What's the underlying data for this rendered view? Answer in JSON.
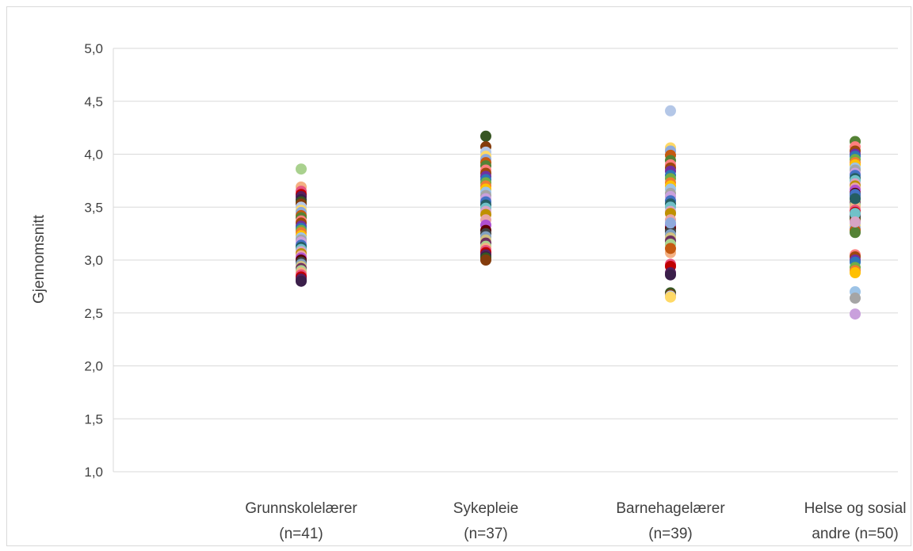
{
  "chart_data": {
    "type": "scatter",
    "title": "",
    "xlabel": "",
    "ylabel": "Gjennomsnitt",
    "ylim": [
      1.0,
      5.0
    ],
    "ytick_labels": [
      "1,0",
      "1,5",
      "2,0",
      "2,5",
      "3,0",
      "3,5",
      "4,0",
      "4,5",
      "5,0"
    ],
    "grid": true,
    "categories": [
      {
        "line1": "Grunnskolelærer",
        "line2": "(n=41)"
      },
      {
        "line1": "Sykepleie",
        "line2": "(n=37)"
      },
      {
        "line1": "Barnehagelærer",
        "line2": "(n=39)"
      },
      {
        "line1": "Helse og sosial",
        "line2": "andre (n=50)"
      }
    ],
    "palette": [
      "#a9d18e",
      "#f4b183",
      "#e75480",
      "#c00000",
      "#5a1e5e",
      "#3b1f4a",
      "#375623",
      "#843c0c",
      "#b4c7e7",
      "#ffd966",
      "#8faadc",
      "#c55a11",
      "#548235",
      "#ff7f7f",
      "#9e480e",
      "#7030a0",
      "#2e75b6",
      "#70ad47",
      "#ed7d31",
      "#ffc000",
      "#9dc3e6",
      "#a5a5a5",
      "#c9a0dc",
      "#4472c4",
      "#255e63",
      "#70c1c8",
      "#d6a4c4",
      "#bf9000",
      "#e7a5a5",
      "#b04fd0",
      "#600000",
      "#404040",
      "#80a0c0",
      "#d0c080",
      "#6f3060"
    ],
    "series": [
      {
        "name": "",
        "category": 0,
        "values": [
          3.86,
          3.69,
          3.65,
          3.62,
          3.6,
          3.57,
          3.55,
          3.53,
          3.5,
          3.47,
          3.45,
          3.42,
          3.4,
          3.37,
          3.35,
          3.32,
          3.3,
          3.28,
          3.26,
          3.23,
          3.21,
          3.19,
          3.17,
          3.14,
          3.12,
          3.1,
          3.08,
          3.06,
          3.04,
          3.02,
          3.0,
          2.98,
          2.96,
          2.94,
          2.92,
          2.9,
          2.88,
          2.86,
          2.84,
          2.82,
          2.8
        ]
      },
      {
        "name": "",
        "category": 1,
        "values": [
          4.17,
          4.07,
          4.02,
          3.98,
          3.95,
          3.92,
          3.89,
          3.85,
          3.82,
          3.79,
          3.76,
          3.73,
          3.7,
          3.67,
          3.64,
          3.61,
          3.58,
          3.55,
          3.52,
          3.49,
          3.46,
          3.43,
          3.38,
          3.33,
          3.28,
          3.25,
          3.22,
          3.19,
          3.16,
          3.13,
          3.11,
          3.09,
          3.07,
          3.05,
          3.03,
          3.02,
          3.0
        ]
      },
      {
        "name": "",
        "category": 2,
        "values": [
          4.41,
          4.06,
          4.03,
          3.99,
          3.94,
          3.9,
          3.87,
          3.84,
          3.8,
          3.77,
          3.73,
          3.7,
          3.67,
          3.63,
          3.6,
          3.56,
          3.53,
          3.5,
          3.46,
          3.44,
          3.38,
          3.33,
          3.3,
          3.27,
          3.24,
          3.21,
          3.18,
          3.15,
          3.07,
          2.96,
          2.94,
          2.88,
          2.86,
          2.69,
          2.67,
          2.66,
          2.65,
          3.35,
          3.11
        ]
      },
      {
        "name": "",
        "category": 3,
        "values": [
          4.12,
          4.07,
          4.03,
          4.0,
          3.98,
          3.95,
          3.92,
          3.9,
          3.87,
          3.85,
          3.82,
          3.8,
          3.77,
          3.75,
          3.72,
          3.7,
          3.68,
          3.66,
          3.63,
          3.61,
          3.59,
          3.56,
          3.54,
          3.52,
          3.5,
          3.47,
          3.45,
          3.43,
          3.41,
          3.39,
          3.37,
          3.34,
          3.32,
          3.3,
          3.28,
          3.26,
          3.05,
          3.03,
          3.0,
          2.98,
          2.93,
          2.9,
          2.88,
          2.7,
          2.64,
          2.49,
          3.62,
          3.58,
          3.44,
          3.36
        ]
      }
    ]
  }
}
